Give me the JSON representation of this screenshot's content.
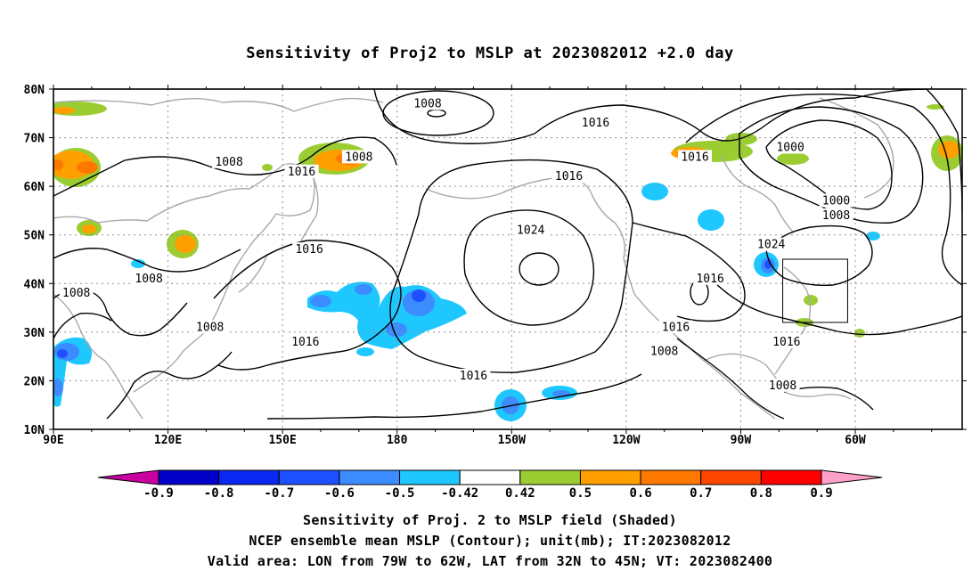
{
  "title": "Sensitivity of Proj2 to MSLP at 2023082012 +2.0 day",
  "lat_labels": [
    "80N",
    "70N",
    "60N",
    "50N",
    "40N",
    "30N",
    "20N",
    "10N"
  ],
  "lon_labels": [
    "90E",
    "120E",
    "150E",
    "180",
    "150W",
    "120W",
    "90W",
    "60W"
  ],
  "contour_labels": [
    {
      "text": "1008",
      "lon": 188,
      "lat": 77
    },
    {
      "text": "1016",
      "lon": 232,
      "lat": 73
    },
    {
      "text": "1000",
      "lon": 283,
      "lat": 68
    },
    {
      "text": "1016",
      "lon": 258,
      "lat": 66
    },
    {
      "text": "1008",
      "lon": 136,
      "lat": 65
    },
    {
      "text": "1016",
      "lon": 155,
      "lat": 63
    },
    {
      "text": "1008",
      "lon": 170,
      "lat": 66
    },
    {
      "text": "1016",
      "lon": 225,
      "lat": 62
    },
    {
      "text": "1000",
      "lon": 295,
      "lat": 57
    },
    {
      "text": "1008",
      "lon": 295,
      "lat": 54
    },
    {
      "text": "1024",
      "lon": 215,
      "lat": 51
    },
    {
      "text": "1024",
      "lon": 278,
      "lat": 48
    },
    {
      "text": "1016",
      "lon": 157,
      "lat": 47
    },
    {
      "text": "1008",
      "lon": 115,
      "lat": 41
    },
    {
      "text": "1008",
      "lon": 96,
      "lat": 38
    },
    {
      "text": "1016",
      "lon": 262,
      "lat": 41
    },
    {
      "text": "1008",
      "lon": 131,
      "lat": 31
    },
    {
      "text": "1016",
      "lon": 156,
      "lat": 28
    },
    {
      "text": "1016",
      "lon": 253,
      "lat": 31
    },
    {
      "text": "1008",
      "lon": 250,
      "lat": 26
    },
    {
      "text": "1016",
      "lon": 282,
      "lat": 28
    },
    {
      "text": "1016",
      "lon": 200,
      "lat": 21
    },
    {
      "text": "1008",
      "lon": 281,
      "lat": 19
    }
  ],
  "colorbar": {
    "labels": [
      "-0.9",
      "-0.8",
      "-0.7",
      "-0.6",
      "-0.5",
      "-0.42",
      "0.42",
      "0.5",
      "0.6",
      "0.7",
      "0.8",
      "0.9"
    ],
    "colors": [
      "#c800a0",
      "#0000c8",
      "#0a28f0",
      "#1e50ff",
      "#3c8cff",
      "#1ec8ff",
      "#ffffff",
      "#9bcd32",
      "#ffa000",
      "#ff7800",
      "#ff4600",
      "#ff0000",
      "#ffa0c8"
    ]
  },
  "captions": [
    "Sensitivity of Proj. 2 to MSLP field (Shaded)",
    "NCEP ensemble mean MSLP (Contour); unit(mb); IT:2023082012",
    "Valid area: LON from 79W to 62W, LAT from 32N to 45N; VT: 2023082400"
  ],
  "valid_area": {
    "lon_from": "79W",
    "lon_to": "62W",
    "lat_from": "32N",
    "lat_to": "45N"
  },
  "map_extent": {
    "lon_min": 90,
    "lon_max": 328,
    "lat_min": 10,
    "lat_max": 80
  }
}
